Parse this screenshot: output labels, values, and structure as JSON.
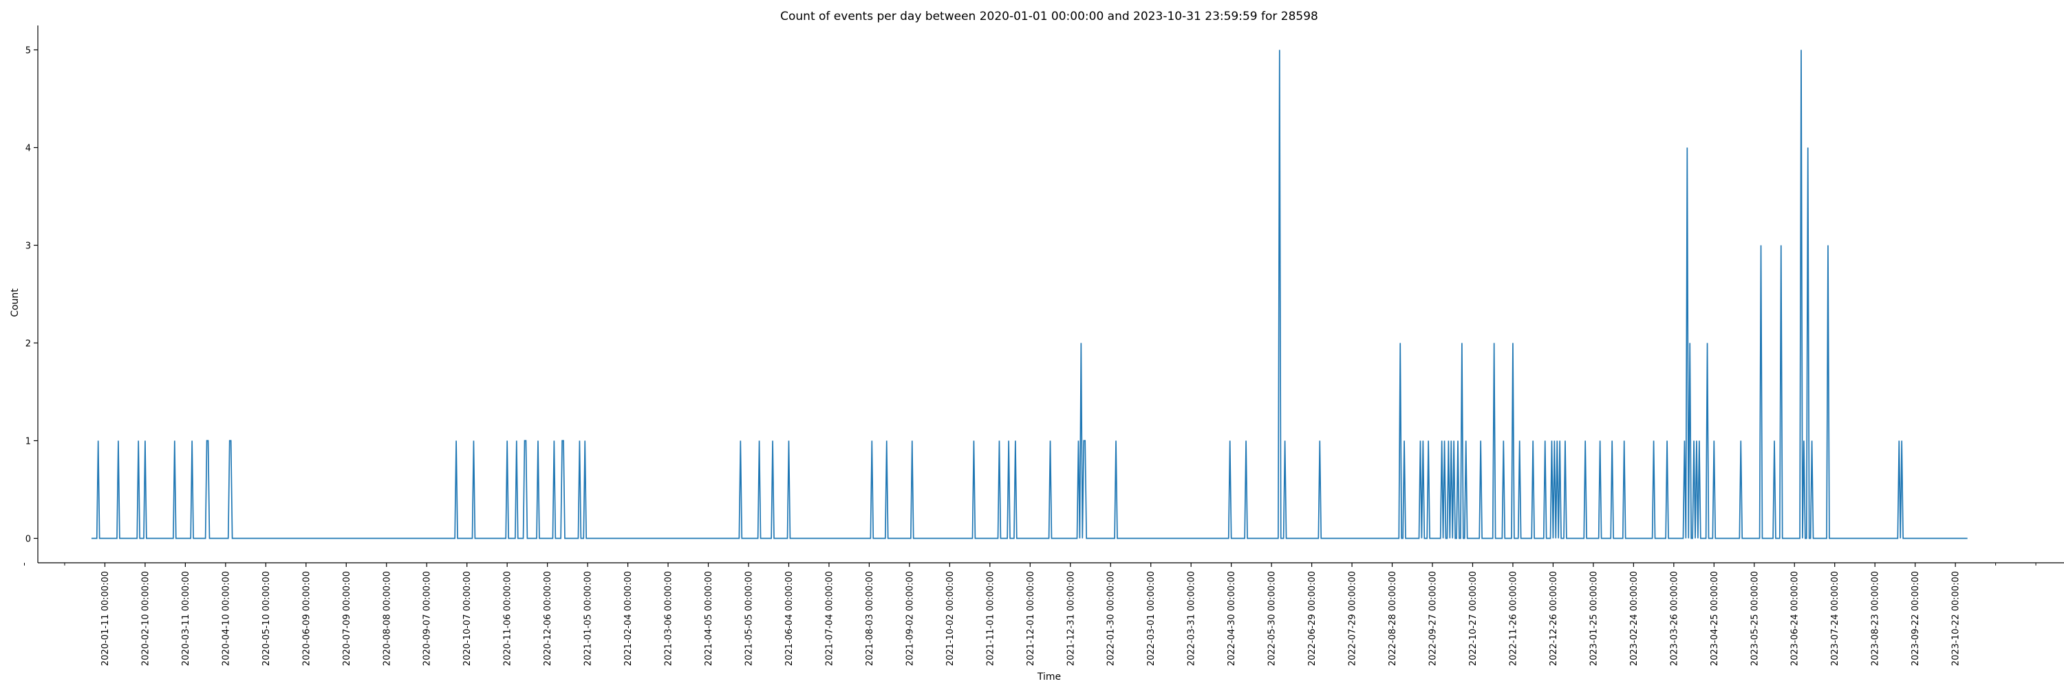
{
  "chart_data": {
    "type": "line",
    "title": "Count of events per day between 2020-01-01 00:00:00 and 2023-10-31 23:59:59 for 28598",
    "xlabel": "Time",
    "ylabel": "Count",
    "xlim": [
      "2019-11-22",
      "2024-01-11"
    ],
    "ylim": [
      -0.25,
      5.25
    ],
    "grid": false,
    "color": "#1f77b4",
    "y_ticks": [
      0,
      1,
      2,
      3,
      4,
      5
    ],
    "x_ticks": [
      "2020-01-11 00:00:00",
      "2020-02-10 00:00:00",
      "2020-03-11 00:00:00",
      "2020-04-10 00:00:00",
      "2020-05-10 00:00:00",
      "2020-06-09 00:00:00",
      "2020-07-09 00:00:00",
      "2020-08-08 00:00:00",
      "2020-09-07 00:00:00",
      "2020-10-07 00:00:00",
      "2020-11-06 00:00:00",
      "2020-12-06 00:00:00",
      "2021-01-05 00:00:00",
      "2021-02-04 00:00:00",
      "2021-03-06 00:00:00",
      "2021-04-05 00:00:00",
      "2021-05-05 00:00:00",
      "2021-06-04 00:00:00",
      "2021-07-04 00:00:00",
      "2021-08-03 00:00:00",
      "2021-09-02 00:00:00",
      "2021-10-02 00:00:00",
      "2021-11-01 00:00:00",
      "2021-12-01 00:00:00",
      "2021-12-31 00:00:00",
      "2022-01-30 00:00:00",
      "2022-03-01 00:00:00",
      "2022-03-31 00:00:00",
      "2022-04-30 00:00:00",
      "2022-05-30 00:00:00",
      "2022-06-29 00:00:00",
      "2022-07-29 00:00:00",
      "2022-08-28 00:00:00",
      "2022-09-27 00:00:00",
      "2022-10-27 00:00:00",
      "2022-11-26 00:00:00",
      "2022-12-26 00:00:00",
      "2023-01-25 00:00:00",
      "2023-02-24 00:00:00",
      "2023-03-26 00:00:00",
      "2023-04-25 00:00:00",
      "2023-05-25 00:00:00",
      "2023-06-24 00:00:00",
      "2023-07-24 00:00:00",
      "2023-08-23 00:00:00",
      "2023-09-22 00:00:00",
      "2023-10-22 00:00:00"
    ],
    "series_range": [
      "2020-01-01",
      "2023-10-31"
    ],
    "nonzero_events": [
      [
        "2020-01-06",
        1
      ],
      [
        "2020-01-21",
        1
      ],
      [
        "2020-02-05",
        1
      ],
      [
        "2020-02-10",
        1
      ],
      [
        "2020-03-03",
        1
      ],
      [
        "2020-03-16",
        1
      ],
      [
        "2020-03-27",
        1
      ],
      [
        "2020-03-28",
        1
      ],
      [
        "2020-04-13",
        1
      ],
      [
        "2020-04-14",
        1
      ],
      [
        "2020-09-29",
        1
      ],
      [
        "2020-10-12",
        1
      ],
      [
        "2020-11-06",
        1
      ],
      [
        "2020-11-13",
        1
      ],
      [
        "2020-11-19",
        1
      ],
      [
        "2020-11-20",
        1
      ],
      [
        "2020-11-29",
        1
      ],
      [
        "2020-12-11",
        1
      ],
      [
        "2020-12-17",
        1
      ],
      [
        "2020-12-18",
        1
      ],
      [
        "2020-12-30",
        1
      ],
      [
        "2021-01-03",
        1
      ],
      [
        "2021-04-29",
        1
      ],
      [
        "2021-05-13",
        1
      ],
      [
        "2021-05-23",
        1
      ],
      [
        "2021-06-04",
        1
      ],
      [
        "2021-08-05",
        1
      ],
      [
        "2021-08-16",
        1
      ],
      [
        "2021-09-04",
        1
      ],
      [
        "2021-10-20",
        1
      ],
      [
        "2021-11-08",
        1
      ],
      [
        "2021-11-15",
        1
      ],
      [
        "2021-11-20",
        1
      ],
      [
        "2021-12-16",
        1
      ],
      [
        "2022-01-06",
        1
      ],
      [
        "2022-01-08",
        2
      ],
      [
        "2022-01-10",
        1
      ],
      [
        "2022-01-11",
        1
      ],
      [
        "2022-02-03",
        1
      ],
      [
        "2022-04-29",
        1
      ],
      [
        "2022-05-11",
        1
      ],
      [
        "2022-06-05",
        5
      ],
      [
        "2022-06-09",
        1
      ],
      [
        "2022-07-05",
        1
      ],
      [
        "2022-09-03",
        2
      ],
      [
        "2022-09-06",
        1
      ],
      [
        "2022-09-18",
        1
      ],
      [
        "2022-09-20",
        1
      ],
      [
        "2022-09-24",
        1
      ],
      [
        "2022-10-04",
        1
      ],
      [
        "2022-10-06",
        1
      ],
      [
        "2022-10-09",
        1
      ],
      [
        "2022-10-11",
        1
      ],
      [
        "2022-10-13",
        1
      ],
      [
        "2022-10-16",
        1
      ],
      [
        "2022-10-19",
        2
      ],
      [
        "2022-10-22",
        1
      ],
      [
        "2022-11-02",
        1
      ],
      [
        "2022-11-12",
        2
      ],
      [
        "2022-11-19",
        1
      ],
      [
        "2022-11-26",
        2
      ],
      [
        "2022-12-01",
        1
      ],
      [
        "2022-12-11",
        1
      ],
      [
        "2022-12-20",
        1
      ],
      [
        "2022-12-25",
        1
      ],
      [
        "2022-12-27",
        1
      ],
      [
        "2022-12-29",
        1
      ],
      [
        "2022-12-31",
        1
      ],
      [
        "2023-01-04",
        1
      ],
      [
        "2023-01-19",
        1
      ],
      [
        "2023-01-30",
        1
      ],
      [
        "2023-02-08",
        1
      ],
      [
        "2023-02-17",
        1
      ],
      [
        "2023-03-11",
        1
      ],
      [
        "2023-03-21",
        1
      ],
      [
        "2023-04-03",
        1
      ],
      [
        "2023-04-05",
        4
      ],
      [
        "2023-04-07",
        2
      ],
      [
        "2023-04-10",
        1
      ],
      [
        "2023-04-12",
        1
      ],
      [
        "2023-04-14",
        1
      ],
      [
        "2023-04-20",
        2
      ],
      [
        "2023-04-25",
        1
      ],
      [
        "2023-05-15",
        1
      ],
      [
        "2023-05-30",
        3
      ],
      [
        "2023-06-09",
        1
      ],
      [
        "2023-06-14",
        3
      ],
      [
        "2023-06-29",
        5
      ],
      [
        "2023-07-01",
        1
      ],
      [
        "2023-07-04",
        4
      ],
      [
        "2023-07-07",
        1
      ],
      [
        "2023-07-19",
        3
      ],
      [
        "2023-09-10",
        1
      ],
      [
        "2023-09-12",
        1
      ]
    ]
  }
}
